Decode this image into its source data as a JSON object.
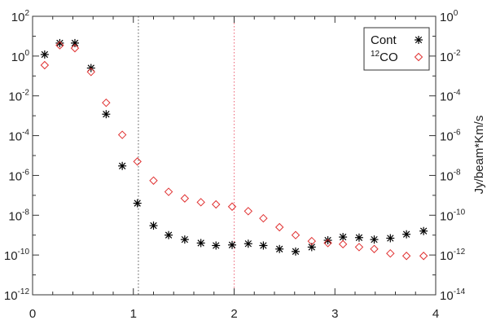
{
  "chart_data": {
    "type": "scatter",
    "title": "",
    "xlabel": "",
    "ylabel": "",
    "y2label": "Jy/beam*Km/s",
    "xlim": [
      0,
      4
    ],
    "ylim": [
      1e-12,
      100
    ],
    "y2lim": [
      1e-14,
      1
    ],
    "yscale": "log",
    "y2scale": "log",
    "x_ticks": [
      "0",
      "1",
      "2",
      "3",
      "4"
    ],
    "y_ticks": [
      {
        "base": "10",
        "exp": "2"
      },
      {
        "base": "10",
        "exp": "0"
      },
      {
        "base": "10",
        "exp": "-2"
      },
      {
        "base": "10",
        "exp": "-4"
      },
      {
        "base": "10",
        "exp": "-6"
      },
      {
        "base": "10",
        "exp": "-8"
      },
      {
        "base": "10",
        "exp": "-10"
      },
      {
        "base": "10",
        "exp": "-12"
      }
    ],
    "y2_ticks": [
      {
        "base": "10",
        "exp": "0"
      },
      {
        "base": "10",
        "exp": "-2"
      },
      {
        "base": "10",
        "exp": "-4"
      },
      {
        "base": "10",
        "exp": "-6"
      },
      {
        "base": "10",
        "exp": "-8"
      },
      {
        "base": "10",
        "exp": "-10"
      },
      {
        "base": "10",
        "exp": "-12"
      },
      {
        "base": "10",
        "exp": "-14"
      }
    ],
    "vlines": [
      {
        "x": 1.05,
        "color": "#555555",
        "style": "dotted"
      },
      {
        "x": 2.0,
        "color": "#ee6677",
        "style": "dotted"
      }
    ],
    "legend": {
      "placement": "top-right",
      "entries": [
        {
          "label_pre": "",
          "label_sup": "",
          "label_main": "Cont",
          "marker": "asterisk",
          "color": "#000000"
        },
        {
          "label_pre": "",
          "label_sup": "12",
          "label_main": "CO",
          "marker": "diamond",
          "color": "#e03030"
        }
      ]
    },
    "series": [
      {
        "name": "Cont",
        "axis": "left",
        "marker": "asterisk",
        "color": "#000000",
        "x": [
          0.12,
          0.27,
          0.42,
          0.58,
          0.73,
          0.89,
          1.04,
          1.2,
          1.35,
          1.51,
          1.67,
          1.82,
          1.98,
          2.14,
          2.29,
          2.45,
          2.61,
          2.77,
          2.93,
          3.08,
          3.24,
          3.39,
          3.55,
          3.71,
          3.88
        ],
        "y": [
          1.2,
          4.5,
          4.5,
          0.25,
          0.0012,
          3e-06,
          4e-08,
          3e-09,
          1e-09,
          6e-10,
          4e-10,
          3e-10,
          3.2e-10,
          3.7e-10,
          3e-10,
          2e-10,
          1.5e-10,
          2.5e-10,
          5.5e-10,
          8e-10,
          7.5e-10,
          6e-10,
          7e-10,
          1.1e-09,
          1.6e-09
        ]
      },
      {
        "name": "12CO",
        "axis": "right",
        "marker": "diamond",
        "color": "#e03030",
        "x": [
          0.12,
          0.27,
          0.42,
          0.58,
          0.73,
          0.89,
          1.04,
          1.2,
          1.35,
          1.51,
          1.67,
          1.82,
          1.98,
          2.14,
          2.29,
          2.45,
          2.61,
          2.77,
          2.93,
          3.08,
          3.24,
          3.39,
          3.55,
          3.71,
          3.88
        ],
        "y": [
          0.0035,
          0.035,
          0.025,
          0.0016,
          4.5e-05,
          1.1e-06,
          5e-08,
          5.5e-09,
          1.5e-09,
          7e-10,
          4.5e-10,
          3.5e-10,
          2.7e-10,
          1.6e-10,
          7e-11,
          2.5e-11,
          1e-11,
          5e-12,
          4e-12,
          3.5e-12,
          2.5e-12,
          2e-12,
          1.2e-12,
          9e-13,
          9e-13
        ]
      }
    ]
  }
}
